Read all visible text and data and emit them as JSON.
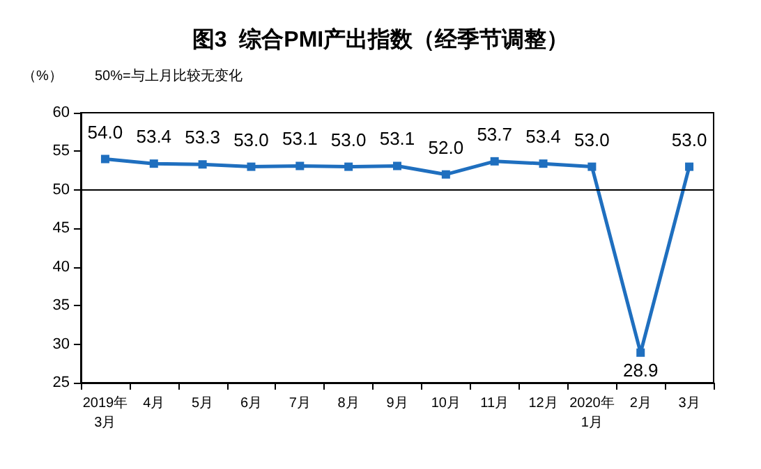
{
  "chart_data": {
    "type": "line",
    "title": "图3  综合PMI产出指数（经季节调整）",
    "ylabel": "（%）",
    "annotations": [
      "50%=与上月比较无变化"
    ],
    "value_labels": [
      "54.0",
      "53.4",
      "53.3",
      "53.0",
      "53.1",
      "53.0",
      "53.1",
      "52.0",
      "53.7",
      "53.4",
      "53.0",
      "28.9",
      "53.0"
    ],
    "categories": [
      "2019年\n3月",
      "4月",
      "5月",
      "6月",
      "7月",
      "8月",
      "9月",
      "10月",
      "11月",
      "12月",
      "2020年\n1月",
      "2月",
      "3月"
    ],
    "series": [
      {
        "color": "#1f6fbf",
        "values": [
          54.0,
          53.4,
          53.3,
          53.0,
          53.1,
          53.0,
          53.1,
          52.0,
          53.7,
          53.4,
          53.0,
          28.9,
          53.0
        ]
      }
    ],
    "ylim": [
      25,
      60
    ],
    "yticks": [
      25,
      30,
      35,
      40,
      45,
      50,
      55,
      60
    ],
    "grid": false,
    "marker": "square",
    "line_style": "solid",
    "ref_lines": [
      {
        "axis": "y",
        "value": 50,
        "color": "#000000"
      }
    ]
  }
}
